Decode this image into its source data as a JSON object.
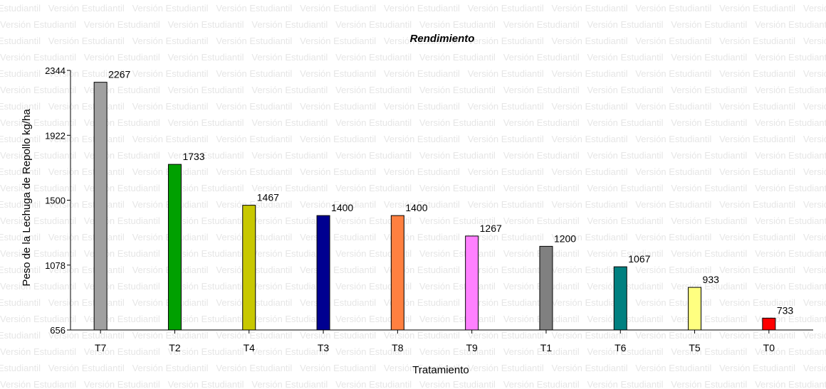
{
  "watermark": "Versión Estudiantil",
  "chart_data": {
    "type": "bar",
    "title": "Rendimiento",
    "xlabel": "Tratamiento",
    "ylabel": "Peso de la Lechuga de Repollo kg/ha",
    "ylim": [
      656,
      2344
    ],
    "yticks": [
      656,
      1078,
      1500,
      1922,
      2344
    ],
    "categories": [
      "T7",
      "T2",
      "T4",
      "T3",
      "T8",
      "T9",
      "T1",
      "T6",
      "T5",
      "T0"
    ],
    "values": [
      2267,
      1733,
      1467,
      1400,
      1400,
      1267,
      1200,
      1067,
      933,
      733
    ],
    "value_labels": [
      "2267",
      "1733",
      "1467",
      "1400",
      "1400",
      "1267",
      "1200",
      "1067",
      "933",
      "733"
    ],
    "colors": [
      "#a0a0a0",
      "#00a000",
      "#c8c800",
      "#000090",
      "#ff8040",
      "#ff80ff",
      "#808080",
      "#008080",
      "#ffff80",
      "#ff0000"
    ],
    "grid": false,
    "legend": "none"
  }
}
